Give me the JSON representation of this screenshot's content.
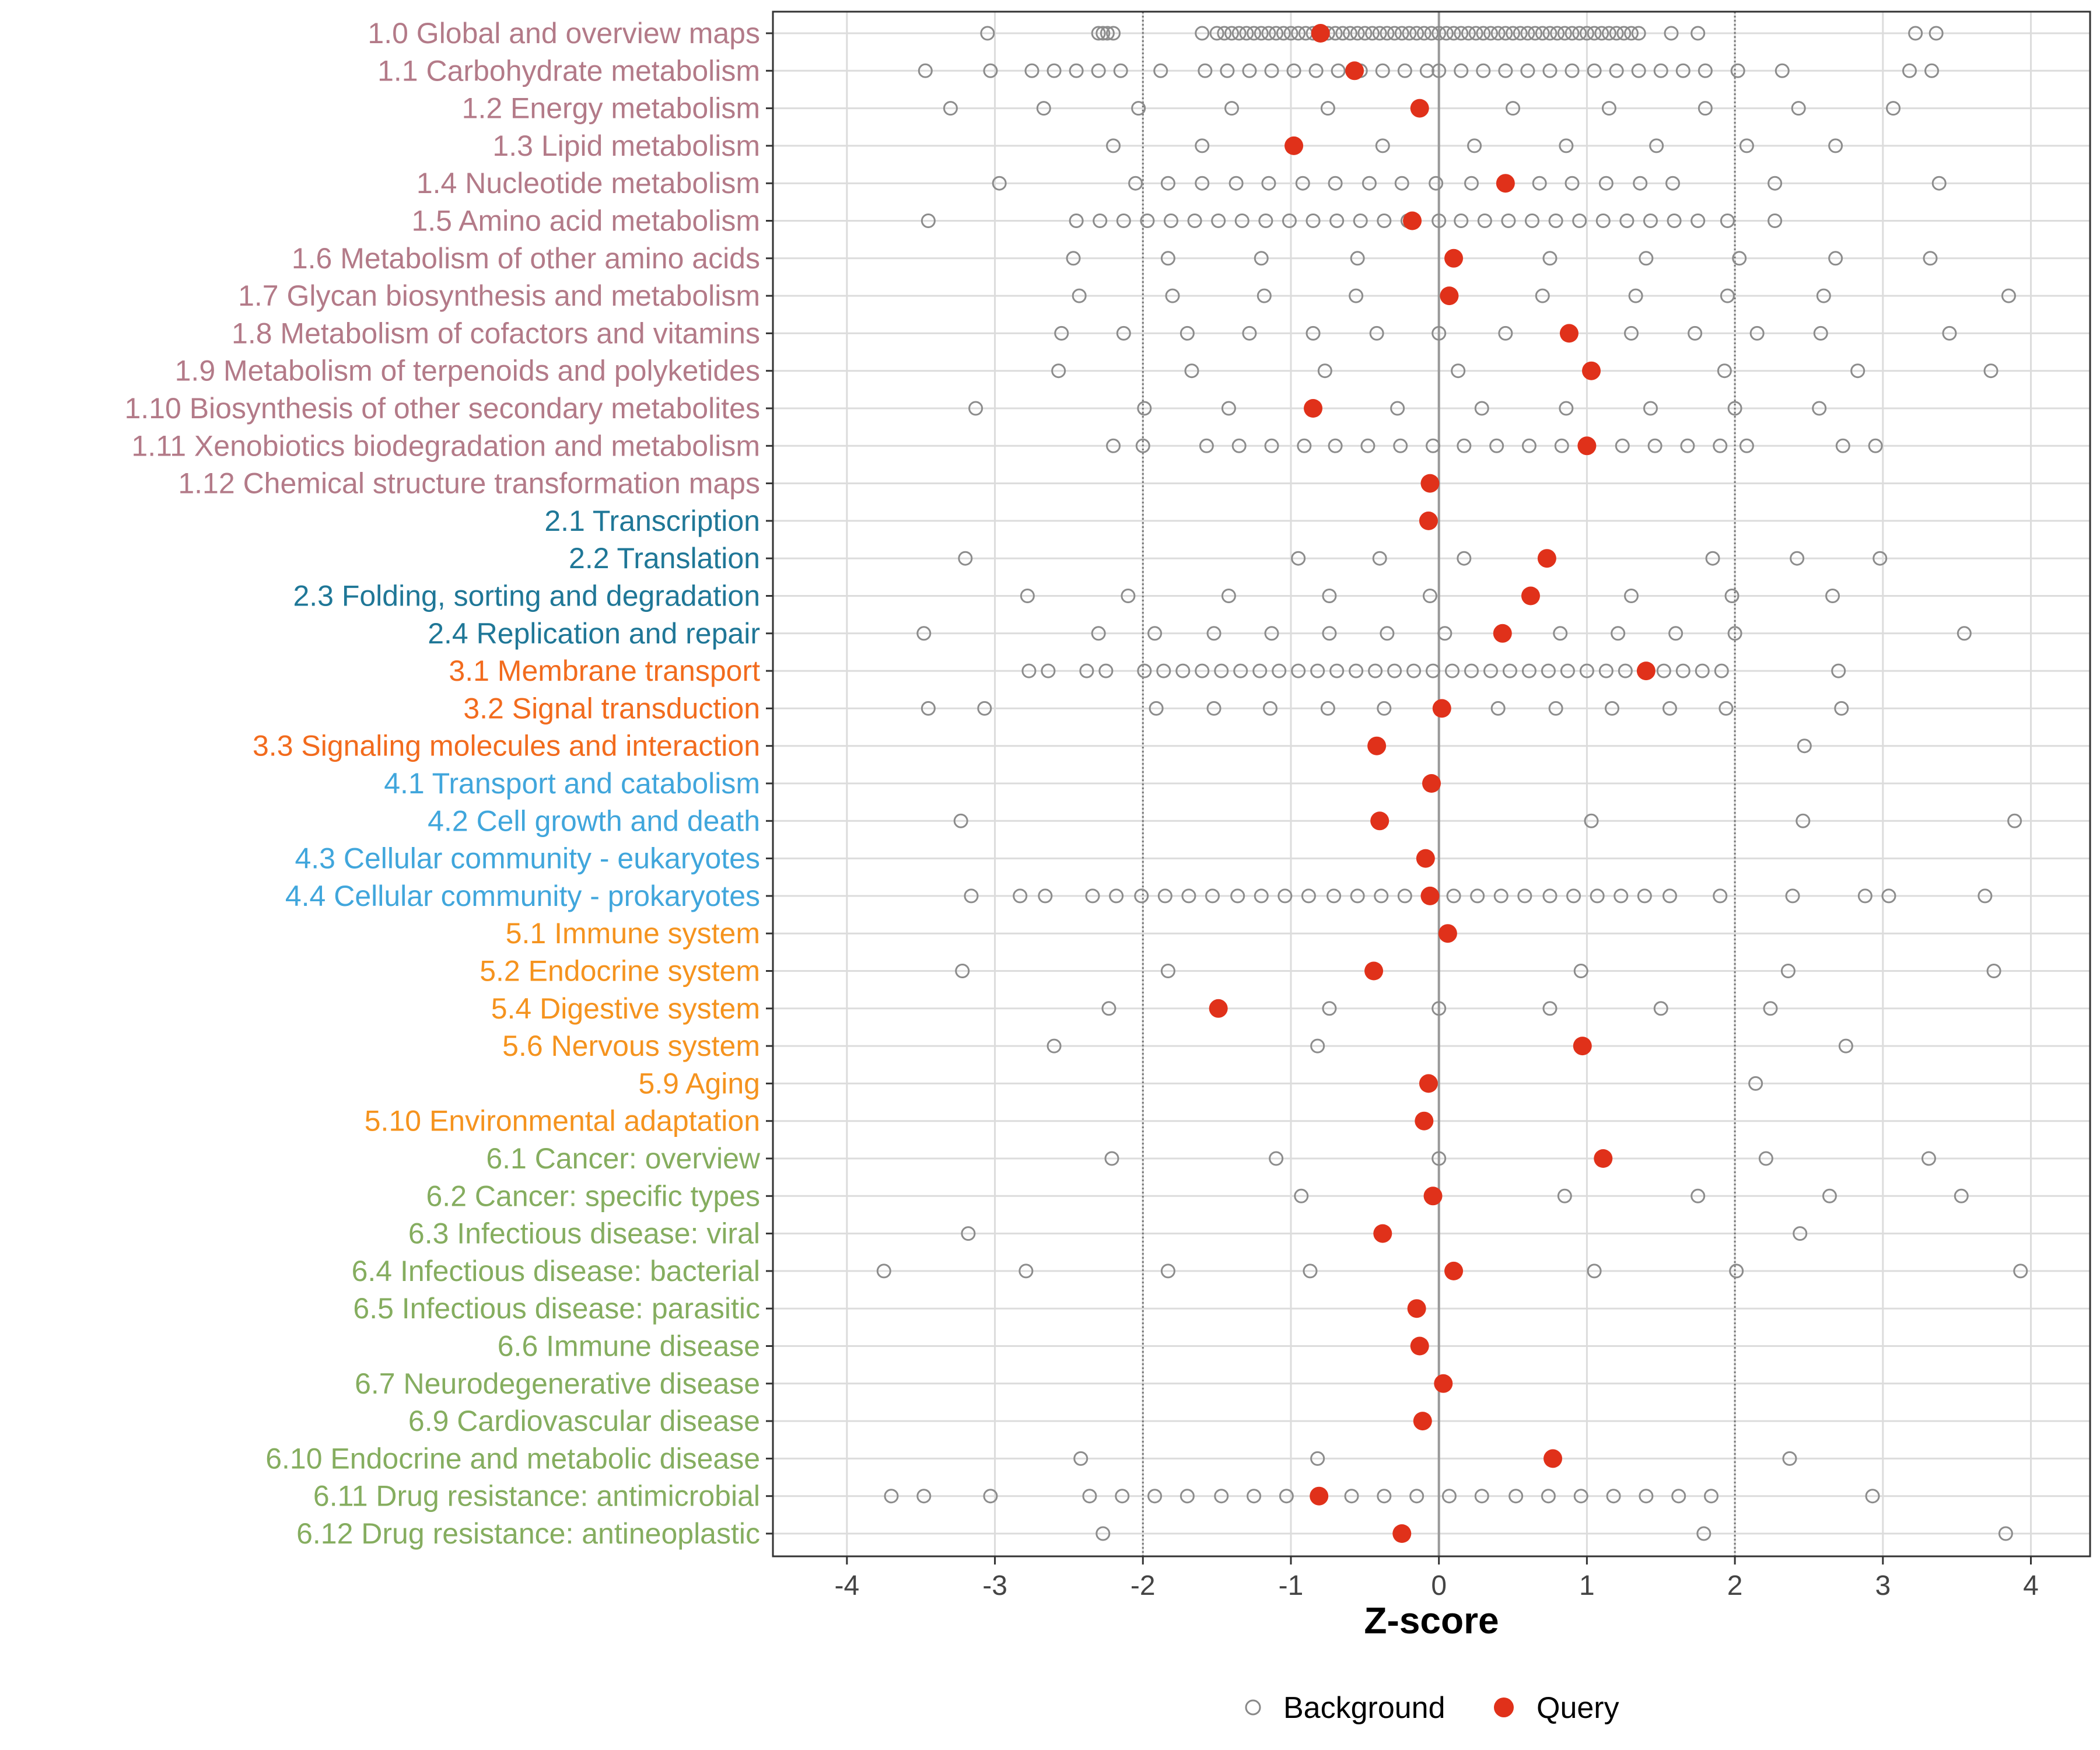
{
  "chart_data": {
    "type": "scatter",
    "title": "",
    "xlabel": "Z-score",
    "ylabel": "",
    "xlim": [
      -4.5,
      4.4
    ],
    "xticks": [
      -4,
      -3,
      -2,
      -1,
      0,
      1,
      2,
      3,
      4
    ],
    "xtick_labels": [
      "-4",
      "-3",
      "-2",
      "-1",
      "0",
      "1",
      "2",
      "3",
      "4"
    ],
    "reference_lines": [
      -2,
      2
    ],
    "zero_line": 0,
    "grid": true,
    "legend": {
      "position": "bottom",
      "entries": [
        {
          "name": "Background",
          "marker": "open-circle",
          "color": "#888888"
        },
        {
          "name": "Query",
          "marker": "filled-circle",
          "color": "#e0311a"
        }
      ]
    },
    "group_colors": {
      "1": "#b37a88",
      "2": "#1f7797",
      "3": "#f26b1d",
      "4": "#40a6dc",
      "5": "#f5931e",
      "6": "#85ad5f"
    },
    "categories": [
      {
        "label": "1.0 Global and overview maps",
        "group": "1",
        "query": -0.8,
        "background": [
          -3.05,
          -2.3,
          -2.27,
          -2.24,
          -2.2,
          -1.6,
          -1.5,
          -1.45,
          -1.4,
          -1.35,
          -1.3,
          -1.25,
          -1.2,
          -1.15,
          -1.1,
          -1.05,
          -1.0,
          -0.95,
          -0.9,
          -0.85,
          -0.75,
          -0.7,
          -0.65,
          -0.6,
          -0.55,
          -0.5,
          -0.45,
          -0.4,
          -0.35,
          -0.3,
          -0.25,
          -0.2,
          -0.15,
          -0.1,
          -0.05,
          0.0,
          0.05,
          0.1,
          0.15,
          0.2,
          0.25,
          0.3,
          0.35,
          0.4,
          0.45,
          0.5,
          0.55,
          0.6,
          0.65,
          0.7,
          0.75,
          0.8,
          0.85,
          0.9,
          0.95,
          1.0,
          1.05,
          1.1,
          1.15,
          1.2,
          1.25,
          1.3,
          1.35,
          1.57,
          1.75,
          3.22,
          3.36
        ]
      },
      {
        "label": "1.1 Carbohydrate metabolism",
        "group": "1",
        "query": -0.57,
        "background": [
          -3.47,
          -3.03,
          -2.75,
          -2.6,
          -2.45,
          -2.3,
          -2.15,
          -1.88,
          -1.58,
          -1.43,
          -1.28,
          -1.13,
          -0.98,
          -0.83,
          -0.68,
          -0.53,
          -0.38,
          -0.23,
          -0.08,
          0.0,
          0.15,
          0.3,
          0.45,
          0.6,
          0.75,
          0.9,
          1.05,
          1.2,
          1.35,
          1.5,
          1.65,
          1.8,
          2.02,
          2.32,
          3.18,
          3.33
        ]
      },
      {
        "label": "1.2 Energy metabolism",
        "group": "1",
        "query": -0.13,
        "background": [
          -3.3,
          -2.67,
          -2.03,
          -1.4,
          -0.75,
          0.5,
          1.15,
          1.8,
          2.43,
          3.07
        ]
      },
      {
        "label": "1.3 Lipid metabolism",
        "group": "1",
        "query": -0.98,
        "background": [
          -2.2,
          -1.6,
          -0.38,
          0.24,
          0.86,
          1.47,
          2.08,
          2.68
        ]
      },
      {
        "label": "1.4 Nucleotide metabolism",
        "group": "1",
        "query": 0.45,
        "background": [
          -2.97,
          -2.05,
          -1.83,
          -1.6,
          -1.37,
          -1.15,
          -0.92,
          -0.7,
          -0.47,
          -0.25,
          -0.02,
          0.22,
          0.68,
          0.9,
          1.13,
          1.36,
          1.58,
          2.27,
          3.38
        ]
      },
      {
        "label": "1.5 Amino acid metabolism",
        "group": "1",
        "query": -0.18,
        "background": [
          -3.45,
          -2.45,
          -2.29,
          -2.13,
          -1.97,
          -1.81,
          -1.65,
          -1.49,
          -1.33,
          -1.17,
          -1.01,
          -0.85,
          -0.69,
          -0.53,
          -0.37,
          -0.21,
          0.0,
          0.15,
          0.31,
          0.47,
          0.63,
          0.79,
          0.95,
          1.11,
          1.27,
          1.43,
          1.59,
          1.75,
          1.95,
          2.27
        ]
      },
      {
        "label": "1.6 Metabolism of other amino acids",
        "group": "1",
        "query": 0.1,
        "background": [
          -2.47,
          -1.83,
          -1.2,
          -0.55,
          0.75,
          1.4,
          2.03,
          2.68,
          3.32
        ]
      },
      {
        "label": "1.7 Glycan biosynthesis and metabolism",
        "group": "1",
        "query": 0.07,
        "background": [
          -2.43,
          -1.8,
          -1.18,
          -0.56,
          0.7,
          1.33,
          1.95,
          2.6,
          3.85
        ]
      },
      {
        "label": "1.8 Metabolism of cofactors and vitamins",
        "group": "1",
        "query": 0.88,
        "background": [
          -2.55,
          -2.13,
          -1.7,
          -1.28,
          -0.85,
          -0.42,
          0.0,
          0.45,
          1.3,
          1.73,
          2.15,
          2.58,
          3.45
        ]
      },
      {
        "label": "1.9 Metabolism of terpenoids and polyketides",
        "group": "1",
        "query": 1.03,
        "background": [
          -2.57,
          -1.67,
          -0.77,
          0.13,
          1.93,
          2.83,
          3.73
        ]
      },
      {
        "label": "1.10 Biosynthesis of other secondary metabolites",
        "group": "1",
        "query": -0.85,
        "background": [
          -3.13,
          -1.99,
          -1.42,
          -0.28,
          0.29,
          0.86,
          1.43,
          2.0,
          2.57
        ]
      },
      {
        "label": "1.11 Xenobiotics biodegradation and metabolism",
        "group": "1",
        "query": 1.0,
        "background": [
          -2.2,
          -2.0,
          -1.57,
          -1.35,
          -1.13,
          -0.91,
          -0.7,
          -0.48,
          -0.26,
          -0.04,
          0.17,
          0.39,
          0.61,
          0.83,
          1.24,
          1.46,
          1.68,
          1.9,
          2.08,
          2.73,
          2.95
        ]
      },
      {
        "label": "1.12 Chemical structure transformation maps",
        "group": "1",
        "query": -0.06,
        "background": []
      },
      {
        "label": "2.1 Transcription",
        "group": "2",
        "query": -0.07,
        "background": []
      },
      {
        "label": "2.2 Translation",
        "group": "2",
        "query": 0.73,
        "background": [
          -3.2,
          -0.95,
          -0.4,
          0.17,
          1.85,
          2.42,
          2.98
        ]
      },
      {
        "label": "2.3 Folding, sorting and degradation",
        "group": "2",
        "query": 0.62,
        "background": [
          -2.78,
          -2.1,
          -1.42,
          -0.74,
          -0.06,
          1.3,
          1.98,
          2.66
        ]
      },
      {
        "label": "2.4 Replication and repair",
        "group": "2",
        "query": 0.43,
        "background": [
          -3.48,
          -2.3,
          -1.92,
          -1.52,
          -1.13,
          -0.74,
          -0.35,
          0.04,
          0.82,
          1.21,
          1.6,
          2.0,
          3.55
        ]
      },
      {
        "label": "3.1 Membrane transport",
        "group": "3",
        "query": 1.4,
        "background": [
          -2.77,
          -2.64,
          -2.38,
          -2.25,
          -1.99,
          -1.86,
          -1.73,
          -1.6,
          -1.47,
          -1.34,
          -1.21,
          -1.08,
          -0.95,
          -0.82,
          -0.69,
          -0.56,
          -0.43,
          -0.3,
          -0.17,
          -0.04,
          0.09,
          0.22,
          0.35,
          0.48,
          0.61,
          0.74,
          0.87,
          1.0,
          1.13,
          1.26,
          1.52,
          1.65,
          1.78,
          1.91,
          2.7
        ]
      },
      {
        "label": "3.2 Signal transduction",
        "group": "3",
        "query": 0.02,
        "background": [
          -3.45,
          -3.07,
          -1.91,
          -1.52,
          -1.14,
          -0.75,
          -0.37,
          0.4,
          0.79,
          1.17,
          1.56,
          1.94,
          2.72
        ]
      },
      {
        "label": "3.3 Signaling molecules and interaction",
        "group": "3",
        "query": -0.42,
        "background": [
          2.47
        ]
      },
      {
        "label": "4.1 Transport and catabolism",
        "group": "4",
        "query": -0.05,
        "background": []
      },
      {
        "label": "4.2 Cell growth and death",
        "group": "4",
        "query": -0.4,
        "background": [
          -3.23,
          1.03,
          2.46,
          3.89
        ]
      },
      {
        "label": "4.3 Cellular community - eukaryotes",
        "group": "4",
        "query": -0.09,
        "background": []
      },
      {
        "label": "4.4 Cellular community - prokaryotes",
        "group": "4",
        "query": -0.06,
        "background": [
          -3.16,
          -2.83,
          -2.66,
          -2.34,
          -2.18,
          -2.01,
          -1.85,
          -1.69,
          -1.53,
          -1.36,
          -1.2,
          -1.04,
          -0.88,
          -0.71,
          -0.55,
          -0.39,
          -0.23,
          0.1,
          0.26,
          0.42,
          0.58,
          0.75,
          0.91,
          1.07,
          1.23,
          1.39,
          1.56,
          1.9,
          2.39,
          2.88,
          3.04,
          3.69
        ]
      },
      {
        "label": "5.1 Immune system",
        "group": "5",
        "query": 0.06,
        "background": []
      },
      {
        "label": "5.2 Endocrine system",
        "group": "5",
        "query": -0.44,
        "background": [
          -3.22,
          -1.83,
          0.96,
          2.36,
          3.75
        ]
      },
      {
        "label": "5.4 Digestive system",
        "group": "5",
        "query": -1.49,
        "background": [
          -2.23,
          -0.74,
          0.0,
          0.75,
          1.5,
          2.24
        ]
      },
      {
        "label": "5.6 Nervous system",
        "group": "5",
        "query": 0.97,
        "background": [
          -2.6,
          -0.82,
          2.75
        ]
      },
      {
        "label": "5.9 Aging",
        "group": "5",
        "query": -0.07,
        "background": [
          2.14
        ]
      },
      {
        "label": "5.10 Environmental adaptation",
        "group": "5",
        "query": -0.1,
        "background": []
      },
      {
        "label": "6.1 Cancer: overview",
        "group": "6",
        "query": 1.11,
        "background": [
          -2.21,
          -1.1,
          0.0,
          2.21,
          3.31
        ]
      },
      {
        "label": "6.2 Cancer: specific types",
        "group": "6",
        "query": -0.04,
        "background": [
          -0.93,
          0.85,
          1.75,
          2.64,
          3.53
        ]
      },
      {
        "label": "6.3 Infectious disease: viral",
        "group": "6",
        "query": -0.38,
        "background": [
          -3.18,
          2.44
        ]
      },
      {
        "label": "6.4 Infectious disease: bacterial",
        "group": "6",
        "query": 0.1,
        "background": [
          -3.75,
          -2.79,
          -1.83,
          -0.87,
          1.05,
          2.01,
          3.93
        ]
      },
      {
        "label": "6.5 Infectious disease: parasitic",
        "group": "6",
        "query": -0.15,
        "background": []
      },
      {
        "label": "6.6 Immune disease",
        "group": "6",
        "query": -0.13,
        "background": []
      },
      {
        "label": "6.7 Neurodegenerative disease",
        "group": "6",
        "query": 0.03,
        "background": []
      },
      {
        "label": "6.9 Cardiovascular disease",
        "group": "6",
        "query": -0.11,
        "background": []
      },
      {
        "label": "6.10 Endocrine and metabolic disease",
        "group": "6",
        "query": 0.77,
        "background": [
          -2.42,
          -0.82,
          2.37
        ]
      },
      {
        "label": "6.11 Drug resistance: antimicrobial",
        "group": "6",
        "query": -0.81,
        "background": [
          -3.7,
          -3.48,
          -3.03,
          -2.36,
          -2.14,
          -1.92,
          -1.7,
          -1.47,
          -1.25,
          -1.03,
          -0.59,
          -0.37,
          -0.15,
          0.07,
          0.29,
          0.52,
          0.74,
          0.96,
          1.18,
          1.4,
          1.62,
          1.84,
          2.93
        ]
      },
      {
        "label": "6.12 Drug resistance: antineoplastic",
        "group": "6",
        "query": -0.25,
        "background": [
          -2.27,
          1.79,
          3.83
        ]
      }
    ]
  }
}
